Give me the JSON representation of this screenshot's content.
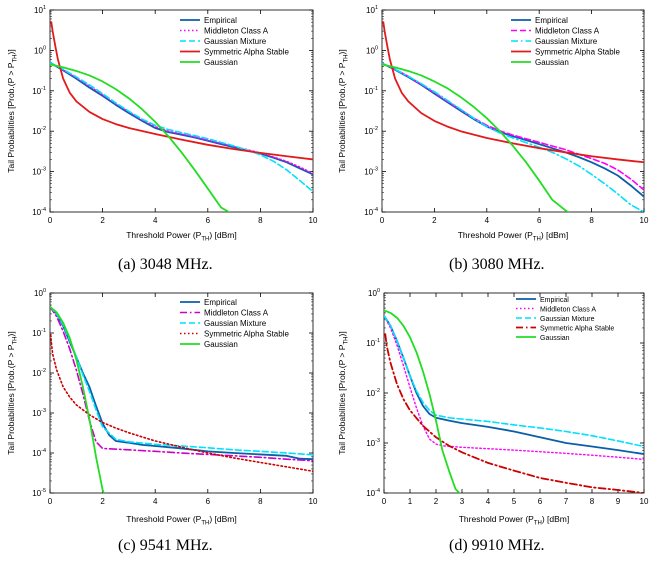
{
  "colors": {
    "empirical": "#0b5ea8",
    "middleton": "#ff00ff",
    "middleton_c": "#cc00cc",
    "gmm": "#00e0ff",
    "sas": "#e31a1c",
    "sas_c": "#cc0000",
    "gaussian": "#22dd22"
  },
  "chart_data": [
    {
      "type": "line",
      "caption": "(a) 3048 MHz.",
      "xlabel": "Threshold Power (P",
      "xlabel_sub": "TH",
      "xlabel_tail": ") [dBm]",
      "ylabel": "Tail Probabilities [Prob.(P > P",
      "ylabel_sub": "TH",
      "ylabel_tail": ")]",
      "xlim": [
        0,
        10
      ],
      "xticks": [
        "0",
        "2",
        "4",
        "6",
        "8",
        "10"
      ],
      "yscale": "log",
      "ylim_exp": [
        -4,
        1
      ],
      "legend_position": "top-right",
      "series": [
        {
          "name": "Empirical",
          "style": "solid",
          "color": "empirical",
          "width": 1.8,
          "x": [
            0,
            0.5,
            1,
            1.5,
            2,
            2.5,
            3,
            3.5,
            4,
            4.5,
            5,
            5.5,
            6,
            6.5,
            7,
            7.5,
            8,
            8.5,
            9,
            9.5,
            10
          ],
          "y": [
            0.5,
            0.32,
            0.2,
            0.12,
            0.075,
            0.045,
            0.028,
            0.018,
            0.012,
            0.0095,
            0.0082,
            0.007,
            0.0058,
            0.0048,
            0.004,
            0.0033,
            0.0028,
            0.0022,
            0.0017,
            0.0012,
            0.00085
          ]
        },
        {
          "name": "Middleton Class A",
          "style": "dotted",
          "color": "middleton",
          "width": 1.4,
          "x": [
            0,
            0.5,
            1,
            1.5,
            2,
            2.5,
            3,
            3.5,
            4,
            4.5,
            5,
            5.5,
            6,
            6.5,
            7,
            7.5,
            8,
            8.5,
            9,
            9.5,
            10
          ],
          "y": [
            0.5,
            0.33,
            0.21,
            0.13,
            0.08,
            0.048,
            0.03,
            0.019,
            0.013,
            0.01,
            0.0085,
            0.0072,
            0.006,
            0.005,
            0.0042,
            0.0035,
            0.0029,
            0.0023,
            0.0018,
            0.0013,
            0.0009
          ]
        },
        {
          "name": "Gaussian Mixture",
          "style": "dashed",
          "color": "gmm",
          "width": 1.6,
          "x": [
            0,
            0.5,
            1,
            1.5,
            2,
            2.5,
            3,
            3.5,
            4,
            4.5,
            5,
            5.5,
            6,
            6.5,
            7,
            7.5,
            8,
            8.5,
            9,
            9.5,
            10
          ],
          "y": [
            0.5,
            0.34,
            0.22,
            0.14,
            0.085,
            0.05,
            0.031,
            0.02,
            0.014,
            0.011,
            0.0092,
            0.0078,
            0.0065,
            0.0053,
            0.0043,
            0.0034,
            0.0026,
            0.0018,
            0.0011,
            0.0006,
            0.00032
          ]
        },
        {
          "name": "Symmetric Alpha Stable",
          "style": "solid",
          "color": "sas",
          "width": 1.8,
          "x": [
            0.05,
            0.1,
            0.2,
            0.3,
            0.5,
            0.75,
            1,
            1.5,
            2,
            2.5,
            3,
            4,
            5,
            6,
            7,
            8,
            9,
            10
          ],
          "y": [
            5,
            3,
            1.3,
            0.6,
            0.2,
            0.09,
            0.055,
            0.03,
            0.02,
            0.015,
            0.012,
            0.0085,
            0.0062,
            0.0046,
            0.0036,
            0.0029,
            0.0024,
            0.002
          ]
        },
        {
          "name": "Gaussian",
          "style": "solid",
          "color": "gaussian",
          "width": 1.8,
          "x": [
            0,
            0.5,
            1,
            1.5,
            2,
            2.5,
            3,
            3.5,
            4,
            4.5,
            5,
            5.5,
            6,
            6.5,
            6.8
          ],
          "y": [
            0.45,
            0.38,
            0.31,
            0.24,
            0.17,
            0.11,
            0.065,
            0.035,
            0.017,
            0.0075,
            0.003,
            0.0011,
            0.00038,
            0.00013,
            0.0001
          ]
        }
      ]
    },
    {
      "type": "line",
      "caption": "(b) 3080 MHz.",
      "xlabel": "Threshold Power (P",
      "xlabel_sub": "TH",
      "xlabel_tail": ") [dBm]",
      "ylabel": "Tail Probabilities [Prob.(P > P",
      "ylabel_sub": "TH",
      "ylabel_tail": ")]",
      "xlim": [
        0,
        10
      ],
      "xticks": [
        "0",
        "2",
        "4",
        "6",
        "8",
        "10"
      ],
      "yscale": "log",
      "ylim_exp": [
        -4,
        1
      ],
      "legend_position": "top-right",
      "series": [
        {
          "name": "Empirical",
          "style": "solid",
          "color": "empirical",
          "width": 1.8,
          "x": [
            0,
            0.5,
            1,
            1.5,
            2,
            2.5,
            3,
            3.5,
            4,
            4.5,
            5,
            5.5,
            6,
            6.5,
            7,
            7.5,
            8,
            8.5,
            9,
            9.5,
            10
          ],
          "y": [
            0.48,
            0.33,
            0.22,
            0.14,
            0.085,
            0.052,
            0.032,
            0.02,
            0.013,
            0.0095,
            0.0075,
            0.006,
            0.0048,
            0.0038,
            0.003,
            0.0023,
            0.0017,
            0.0012,
            0.0008,
            0.00045,
            0.00024
          ]
        },
        {
          "name": "Middleton Class A",
          "style": "dashed",
          "color": "middleton",
          "width": 1.6,
          "x": [
            0,
            0.5,
            1,
            1.5,
            2,
            2.5,
            3,
            3.5,
            4,
            4.5,
            5,
            5.5,
            6,
            6.5,
            7,
            7.5,
            8,
            8.5,
            9,
            9.5,
            10
          ],
          "y": [
            0.48,
            0.34,
            0.23,
            0.145,
            0.09,
            0.055,
            0.034,
            0.021,
            0.014,
            0.0102,
            0.008,
            0.0065,
            0.0053,
            0.0043,
            0.0035,
            0.0027,
            0.0021,
            0.0016,
            0.0011,
            0.00065,
            0.00035
          ]
        },
        {
          "name": "Gaussian Mixture",
          "style": "dashdot",
          "color": "gmm",
          "width": 1.6,
          "x": [
            0,
            0.5,
            1,
            1.5,
            2,
            2.5,
            3,
            3.5,
            4,
            4.5,
            5,
            5.5,
            6,
            6.5,
            7,
            7.5,
            8,
            8.5,
            9,
            9.5,
            10
          ],
          "y": [
            0.48,
            0.34,
            0.23,
            0.15,
            0.095,
            0.058,
            0.035,
            0.021,
            0.013,
            0.009,
            0.0068,
            0.0052,
            0.004,
            0.003,
            0.0021,
            0.0014,
            0.00085,
            0.0005,
            0.00028,
            0.00015,
            0.0001
          ]
        },
        {
          "name": "Symmetric Alpha Stable",
          "style": "solid",
          "color": "sas",
          "width": 1.8,
          "x": [
            0.05,
            0.1,
            0.2,
            0.3,
            0.5,
            0.75,
            1,
            1.5,
            2,
            2.5,
            3,
            4,
            5,
            6,
            7,
            8,
            9,
            10
          ],
          "y": [
            5,
            3,
            1.3,
            0.6,
            0.2,
            0.09,
            0.055,
            0.028,
            0.018,
            0.013,
            0.01,
            0.0068,
            0.005,
            0.0038,
            0.003,
            0.0024,
            0.002,
            0.0017
          ]
        },
        {
          "name": "Gaussian",
          "style": "solid",
          "color": "gaussian",
          "width": 1.8,
          "x": [
            0,
            0.5,
            1,
            1.5,
            2,
            2.5,
            3,
            3.5,
            4,
            4.5,
            5,
            5.5,
            6,
            6.5,
            7,
            7.1
          ],
          "y": [
            0.45,
            0.38,
            0.31,
            0.24,
            0.17,
            0.115,
            0.07,
            0.04,
            0.021,
            0.01,
            0.0043,
            0.0017,
            0.0006,
            0.0002,
            0.00011,
            0.0001
          ]
        }
      ]
    },
    {
      "type": "line",
      "caption": "(c) 9541 MHz.",
      "xlabel": "Threshold Power (P",
      "xlabel_sub": "TH",
      "xlabel_tail": ") [dBm]",
      "ylabel": "Tail Probabilities [Prob.(P > P",
      "ylabel_sub": "TH",
      "ylabel_tail": ")]",
      "xlim": [
        0,
        10
      ],
      "xticks": [
        "0",
        "2",
        "4",
        "6",
        "8",
        "10"
      ],
      "yscale": "log",
      "ylim_exp": [
        -5,
        0
      ],
      "legend_position": "top-right",
      "series": [
        {
          "name": "Empirical",
          "style": "solid",
          "color": "empirical",
          "width": 1.8,
          "x": [
            0,
            0.25,
            0.5,
            0.75,
            1,
            1.25,
            1.5,
            1.75,
            2,
            2.25,
            2.5,
            3,
            3.5,
            4,
            5,
            6,
            7,
            8,
            9,
            9.5,
            10
          ],
          "y": [
            0.45,
            0.3,
            0.15,
            0.06,
            0.025,
            0.01,
            0.0045,
            0.0015,
            0.00055,
            0.00028,
            0.0002,
            0.00018,
            0.00016,
            0.00015,
            0.00013,
            0.00011,
            0.0001,
            9.2e-05,
            8.5e-05,
            7.2e-05,
            7e-05
          ]
        },
        {
          "name": "Middleton Class A",
          "style": "dashdot",
          "color": "middleton_c",
          "width": 1.6,
          "x": [
            0,
            0.25,
            0.5,
            0.75,
            1,
            1.25,
            1.5,
            1.75,
            2,
            3,
            4,
            5,
            6,
            7,
            8,
            9,
            10
          ],
          "y": [
            0.45,
            0.26,
            0.11,
            0.04,
            0.012,
            0.003,
            0.00065,
            0.00019,
            0.00013,
            0.00012,
            0.00011,
            0.0001,
            9.2e-05,
            8.5e-05,
            7.8e-05,
            7e-05,
            6.4e-05
          ]
        },
        {
          "name": "Gaussian Mixture",
          "style": "dashed",
          "color": "gmm",
          "width": 1.6,
          "x": [
            0,
            0.25,
            0.5,
            0.75,
            1,
            1.25,
            1.5,
            1.75,
            2,
            2.5,
            3,
            4,
            5,
            6,
            7,
            8,
            9,
            10
          ],
          "y": [
            0.45,
            0.3,
            0.16,
            0.065,
            0.026,
            0.009,
            0.0035,
            0.0012,
            0.00045,
            0.00022,
            0.00019,
            0.000165,
            0.00015,
            0.000135,
            0.00012,
            0.00011,
            0.0001,
            9e-05
          ]
        },
        {
          "name": "Symmetric Alpha Stable",
          "style": "dotted",
          "color": "sas_c",
          "width": 1.6,
          "x": [
            0.02,
            0.1,
            0.25,
            0.5,
            0.75,
            1,
            1.5,
            2,
            2.5,
            3,
            4,
            5,
            6,
            7,
            8,
            9,
            10
          ],
          "y": [
            0.09,
            0.03,
            0.012,
            0.0045,
            0.0025,
            0.0016,
            0.0009,
            0.00058,
            0.00042,
            0.00032,
            0.0002,
            0.00014,
            0.0001,
            7.5e-05,
            5.8e-05,
            4.5e-05,
            3.5e-05
          ]
        },
        {
          "name": "Gaussian",
          "style": "solid",
          "color": "gaussian",
          "width": 1.8,
          "x": [
            0,
            0.25,
            0.5,
            0.75,
            1,
            1.25,
            1.5,
            1.75,
            2,
            2.05
          ],
          "y": [
            0.45,
            0.33,
            0.18,
            0.075,
            0.022,
            0.0045,
            0.0007,
            8e-05,
            1.2e-05,
            1e-05
          ]
        }
      ]
    },
    {
      "type": "line",
      "caption": "(d) 9910 MHz.",
      "xlabel": "Threshold Power (P",
      "xlabel_sub": "TH",
      "xlabel_tail": ") [dBm]",
      "ylabel": "Tail Probabilities [Prob.(P > P",
      "ylabel_sub": "TH",
      "ylabel_tail": ")]",
      "xlim": [
        0,
        10
      ],
      "xticks": [
        "0",
        "1",
        "2",
        "3",
        "4",
        "5",
        "6",
        "7",
        "8",
        "9",
        "10"
      ],
      "yscale": "log",
      "ylim_exp": [
        -4,
        0
      ],
      "legend_position": "top-right",
      "series": [
        {
          "name": "Empirical",
          "style": "solid",
          "color": "empirical",
          "width": 1.8,
          "x": [
            0,
            0.25,
            0.5,
            0.75,
            1,
            1.25,
            1.5,
            1.75,
            2,
            2.5,
            3,
            4,
            5,
            6,
            7,
            8,
            9,
            10
          ],
          "y": [
            0.35,
            0.22,
            0.11,
            0.05,
            0.022,
            0.01,
            0.0055,
            0.0038,
            0.0032,
            0.0028,
            0.0025,
            0.0021,
            0.0017,
            0.0013,
            0.001,
            0.00085,
            0.00072,
            0.0006
          ]
        },
        {
          "name": "Middleton Class A",
          "style": "dotted",
          "color": "middleton",
          "width": 1.4,
          "x": [
            0,
            0.25,
            0.5,
            0.75,
            1,
            1.25,
            1.5,
            1.75,
            2,
            2.25,
            3,
            4,
            5,
            6,
            7,
            8,
            9,
            10
          ],
          "y": [
            0.35,
            0.2,
            0.09,
            0.035,
            0.013,
            0.005,
            0.0022,
            0.0012,
            0.00095,
            0.00088,
            0.00082,
            0.00077,
            0.00072,
            0.00067,
            0.00062,
            0.00057,
            0.00052,
            0.00047
          ]
        },
        {
          "name": "Gaussian Mixture",
          "style": "dashed",
          "color": "gmm",
          "width": 1.6,
          "x": [
            0,
            0.25,
            0.5,
            0.75,
            1,
            1.25,
            1.5,
            1.75,
            2,
            2.5,
            3,
            4,
            5,
            6,
            7,
            8,
            9,
            10
          ],
          "y": [
            0.35,
            0.22,
            0.11,
            0.05,
            0.022,
            0.011,
            0.0065,
            0.0045,
            0.0036,
            0.0032,
            0.003,
            0.0027,
            0.0023,
            0.002,
            0.0017,
            0.0014,
            0.0011,
            0.00085
          ]
        },
        {
          "name": "Symmetric Alpha Stable",
          "style": "dashdot",
          "color": "sas_c",
          "width": 1.8,
          "x": [
            0.05,
            0.1,
            0.25,
            0.5,
            0.75,
            1,
            1.5,
            2,
            2.5,
            3,
            4,
            5,
            6,
            7,
            8,
            9,
            10
          ],
          "y": [
            0.15,
            0.09,
            0.04,
            0.015,
            0.0075,
            0.0045,
            0.0022,
            0.0013,
            0.00088,
            0.00065,
            0.0004,
            0.00028,
            0.0002,
            0.00016,
            0.00013,
            0.000115,
            0.0001
          ]
        },
        {
          "name": "Gaussian",
          "style": "solid",
          "color": "gaussian",
          "width": 1.8,
          "x": [
            0,
            0.25,
            0.5,
            0.75,
            1,
            1.25,
            1.5,
            1.75,
            2,
            2.25,
            2.5,
            2.75,
            2.9
          ],
          "y": [
            0.45,
            0.4,
            0.32,
            0.22,
            0.13,
            0.065,
            0.027,
            0.0095,
            0.0028,
            0.0007,
            0.00028,
            0.00012,
            0.0001
          ]
        }
      ]
    }
  ]
}
